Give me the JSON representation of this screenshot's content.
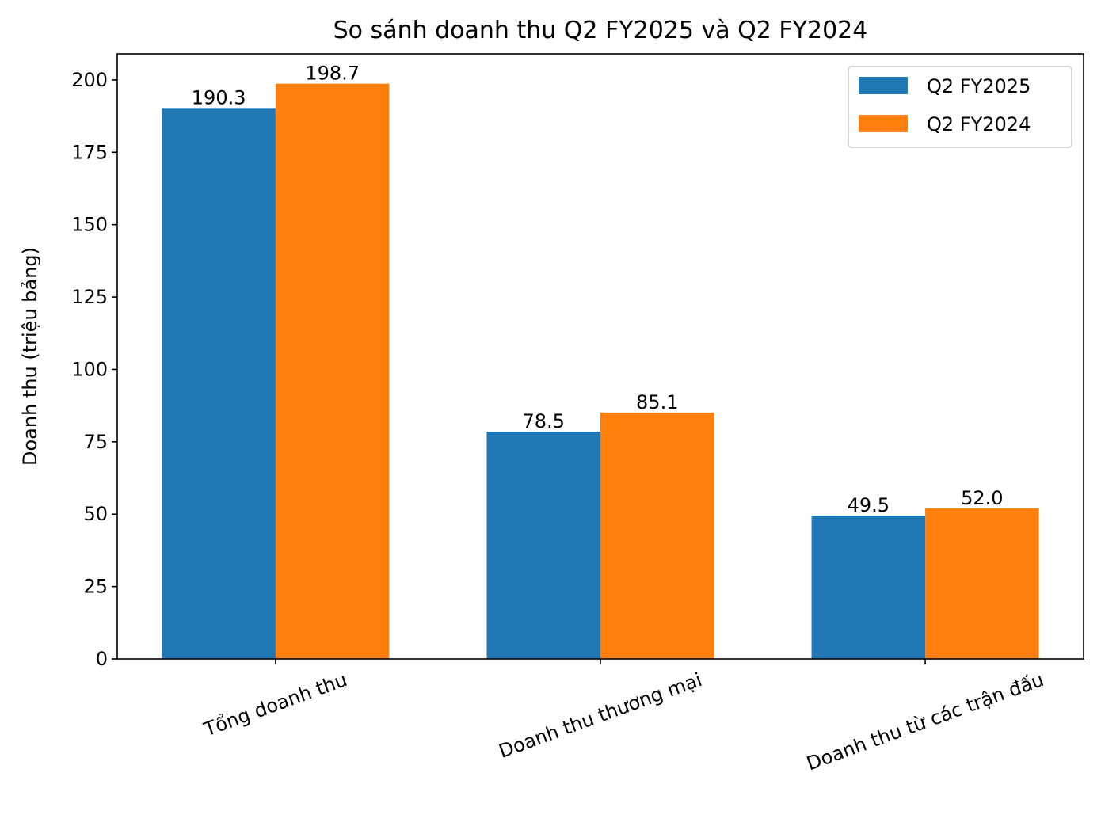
{
  "chart_data": {
    "type": "bar",
    "title": "So sánh doanh thu Q2 FY2025 và Q2 FY2024",
    "xlabel": "",
    "ylabel": "Doanh thu (triệu bảng)",
    "categories": [
      "Tổng doanh thu",
      "Doanh thu thương mại",
      "Doanh thu từ các trận đấu"
    ],
    "series": [
      {
        "name": "Q2 FY2025",
        "values": [
          190.3,
          78.5,
          49.5
        ],
        "color": "#1f77b4",
        "labels": [
          "190.3",
          "78.5",
          "49.5"
        ]
      },
      {
        "name": "Q2 FY2024",
        "values": [
          198.7,
          85.1,
          52.0
        ],
        "color": "#ff7f0e",
        "labels": [
          "198.7",
          "85.1",
          "52.0"
        ]
      }
    ],
    "ylim": [
      0,
      209
    ],
    "yticks": [
      0,
      25,
      50,
      75,
      100,
      125,
      150,
      175,
      200
    ],
    "ytick_labels": [
      "0",
      "25",
      "50",
      "75",
      "100",
      "125",
      "150",
      "175",
      "200"
    ],
    "grid": false,
    "legend": "top-right",
    "xtick_rotation": 20
  }
}
